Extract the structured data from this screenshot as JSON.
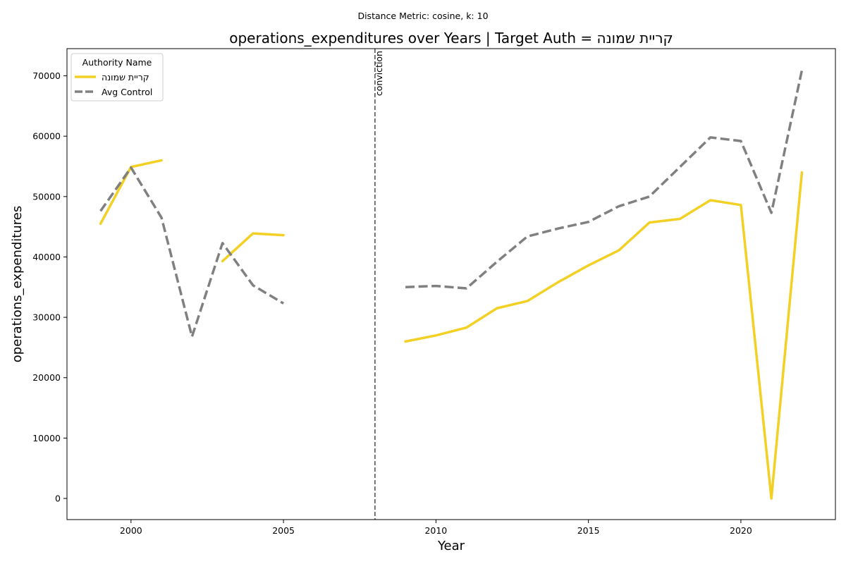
{
  "chart_data": {
    "type": "line",
    "subtitle": "Distance Metric: cosine, k: 10",
    "title": "operations_expenditures over Years | Target Auth = קריית שמונה",
    "xlabel": "Year",
    "ylabel": "operations_expenditures",
    "xlim": [
      1997.9,
      2023.1
    ],
    "ylim": [
      -3500,
      74500
    ],
    "xticks": [
      2000,
      2005,
      2010,
      2015,
      2020
    ],
    "yticks": [
      0,
      10000,
      20000,
      30000,
      40000,
      50000,
      60000,
      70000
    ],
    "grid": false,
    "legend": {
      "title": "Authority Name",
      "placement": "top-left"
    },
    "vline": {
      "x": 2008,
      "label": "conviction",
      "color": "#555555"
    },
    "series": [
      {
        "name": "קריית שמונה",
        "color": "#f2d024",
        "style": "solid",
        "points": [
          [
            1999,
            45500
          ],
          [
            2000,
            54900
          ],
          [
            2001,
            56000
          ],
          [
            2002,
            null
          ],
          [
            2003,
            39300
          ],
          [
            2004,
            43900
          ],
          [
            2005,
            43600
          ],
          [
            2006,
            null
          ],
          [
            2007,
            null
          ],
          [
            2008,
            null
          ],
          [
            2009,
            26000
          ],
          [
            2010,
            27000
          ],
          [
            2011,
            28300
          ],
          [
            2012,
            31500
          ],
          [
            2013,
            32700
          ],
          [
            2014,
            35800
          ],
          [
            2015,
            38600
          ],
          [
            2016,
            41100
          ],
          [
            2017,
            45700
          ],
          [
            2018,
            46300
          ],
          [
            2019,
            49400
          ],
          [
            2020,
            48600
          ],
          [
            2021,
            0
          ],
          [
            2022,
            54000
          ]
        ]
      },
      {
        "name": "Avg Control",
        "color": "#808080",
        "style": "dashed",
        "points": [
          [
            1999,
            47600
          ],
          [
            2000,
            54800
          ],
          [
            2001,
            46500
          ],
          [
            2002,
            26800
          ],
          [
            2003,
            42300
          ],
          [
            2004,
            35300
          ],
          [
            2005,
            32300
          ],
          [
            2006,
            null
          ],
          [
            2007,
            null
          ],
          [
            2008,
            null
          ],
          [
            2009,
            35000
          ],
          [
            2010,
            35200
          ],
          [
            2011,
            34800
          ],
          [
            2012,
            39200
          ],
          [
            2013,
            43400
          ],
          [
            2014,
            44700
          ],
          [
            2015,
            45800
          ],
          [
            2016,
            48400
          ],
          [
            2017,
            50000
          ],
          [
            2018,
            54900
          ],
          [
            2019,
            59800
          ],
          [
            2020,
            59200
          ],
          [
            2021,
            47300
          ],
          [
            2022,
            70900
          ]
        ]
      }
    ]
  }
}
